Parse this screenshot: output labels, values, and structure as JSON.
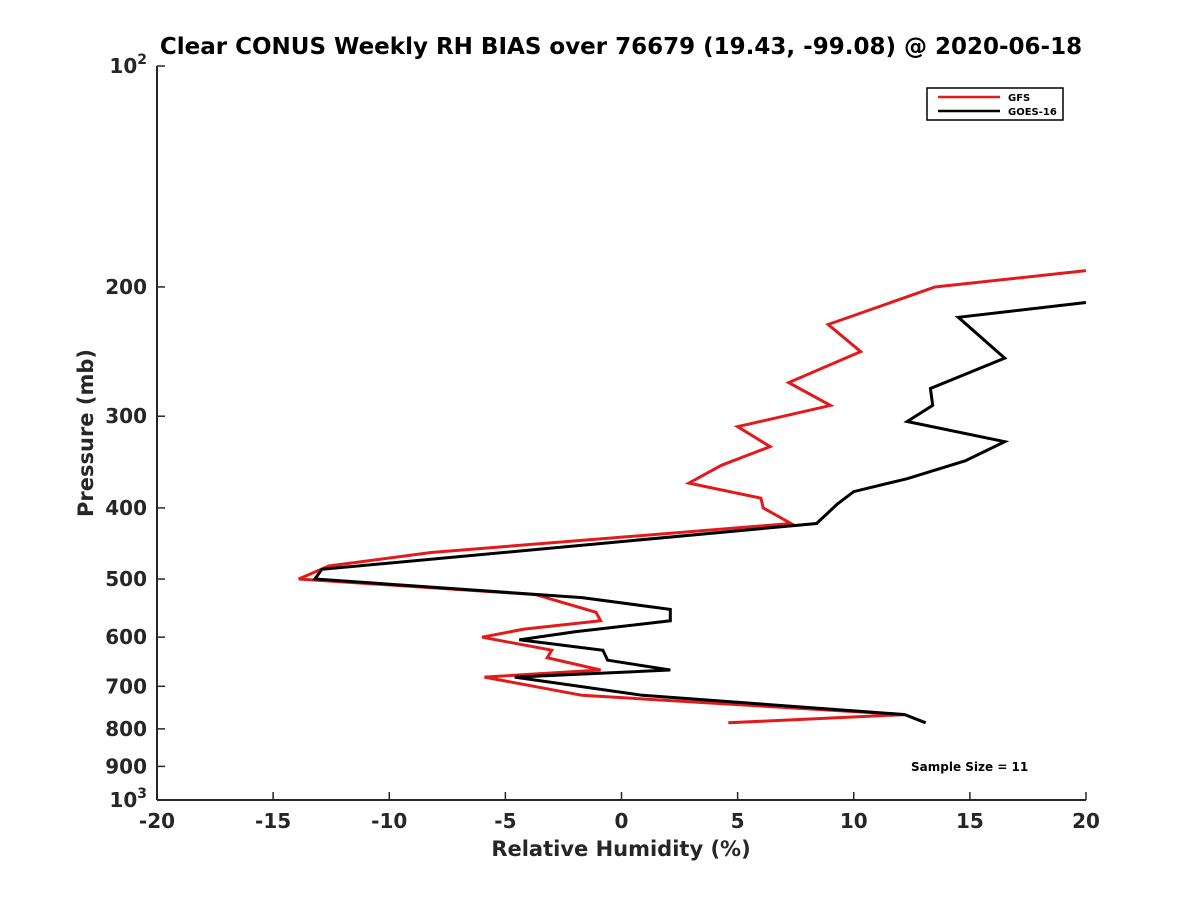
{
  "chart_data": {
    "type": "line",
    "title": "Clear CONUS Weekly RH BIAS over 76679 (19.43, -99.08) @ 2020-06-18",
    "xlabel": "Relative Humidity (%)",
    "ylabel": "Pressure (mb)",
    "xlim": [
      -20,
      20
    ],
    "ylim": [
      100,
      1000
    ],
    "y_scale": "log",
    "y_reversed": true,
    "grid": false,
    "legend_position": "top-right",
    "x_ticks": [
      -20,
      -15,
      -10,
      -5,
      0,
      5,
      10,
      15,
      20
    ],
    "x_tick_labels": [
      "-20",
      "-15",
      "-10",
      "-5",
      "0",
      "5",
      "10",
      "15",
      "20"
    ],
    "y_ticks": [
      100,
      200,
      300,
      400,
      500,
      600,
      700,
      800,
      900,
      1000
    ],
    "y_tick_labels": [
      {
        "base": "10",
        "exp": "2"
      },
      {
        "base": "200",
        "exp": ""
      },
      {
        "base": "300",
        "exp": ""
      },
      {
        "base": "400",
        "exp": ""
      },
      {
        "base": "500",
        "exp": ""
      },
      {
        "base": "600",
        "exp": ""
      },
      {
        "base": "700",
        "exp": ""
      },
      {
        "base": "800",
        "exp": ""
      },
      {
        "base": "900",
        "exp": ""
      },
      {
        "base": "10",
        "exp": "3"
      }
    ],
    "series": [
      {
        "name": "GFS",
        "color": "#e31a1c",
        "points": [
          {
            "x": 20.0,
            "y": 190
          },
          {
            "x": 13.5,
            "y": 200
          },
          {
            "x": 8.9,
            "y": 225
          },
          {
            "x": 10.3,
            "y": 245
          },
          {
            "x": 7.2,
            "y": 270
          },
          {
            "x": 9.0,
            "y": 290
          },
          {
            "x": 5.0,
            "y": 310
          },
          {
            "x": 6.4,
            "y": 330
          },
          {
            "x": 4.3,
            "y": 350
          },
          {
            "x": 2.9,
            "y": 370
          },
          {
            "x": 6.0,
            "y": 388
          },
          {
            "x": 6.1,
            "y": 400
          },
          {
            "x": 7.3,
            "y": 420
          },
          {
            "x": -8.2,
            "y": 460
          },
          {
            "x": -12.6,
            "y": 480
          },
          {
            "x": -13.9,
            "y": 500
          },
          {
            "x": -3.7,
            "y": 525
          },
          {
            "x": -1.1,
            "y": 555
          },
          {
            "x": -0.9,
            "y": 570
          },
          {
            "x": -4.2,
            "y": 585
          },
          {
            "x": -6.0,
            "y": 600
          },
          {
            "x": -3.0,
            "y": 625
          },
          {
            "x": -3.2,
            "y": 640
          },
          {
            "x": -0.9,
            "y": 665
          },
          {
            "x": -5.9,
            "y": 680
          },
          {
            "x": -1.7,
            "y": 720
          },
          {
            "x": 12.2,
            "y": 765
          },
          {
            "x": 4.6,
            "y": 785
          }
        ]
      },
      {
        "name": "GOES-16",
        "color": "#000000",
        "points": [
          {
            "x": 20.0,
            "y": 210
          },
          {
            "x": 14.5,
            "y": 220
          },
          {
            "x": 16.5,
            "y": 250
          },
          {
            "x": 13.3,
            "y": 275
          },
          {
            "x": 13.4,
            "y": 290
          },
          {
            "x": 12.3,
            "y": 305
          },
          {
            "x": 16.5,
            "y": 325
          },
          {
            "x": 14.8,
            "y": 345
          },
          {
            "x": 12.3,
            "y": 365
          },
          {
            "x": 10.0,
            "y": 380
          },
          {
            "x": 9.3,
            "y": 395
          },
          {
            "x": 8.4,
            "y": 420
          },
          {
            "x": -12.9,
            "y": 485
          },
          {
            "x": -13.2,
            "y": 500
          },
          {
            "x": -1.7,
            "y": 530
          },
          {
            "x": 2.1,
            "y": 550
          },
          {
            "x": 2.1,
            "y": 570
          },
          {
            "x": -2.0,
            "y": 590
          },
          {
            "x": -4.4,
            "y": 605
          },
          {
            "x": -0.8,
            "y": 625
          },
          {
            "x": -0.6,
            "y": 645
          },
          {
            "x": 2.1,
            "y": 665
          },
          {
            "x": -4.6,
            "y": 680
          },
          {
            "x": 0.9,
            "y": 720
          },
          {
            "x": 12.2,
            "y": 765
          },
          {
            "x": 13.1,
            "y": 785
          }
        ]
      }
    ],
    "annotations": [
      "Sample Size = 11"
    ]
  }
}
